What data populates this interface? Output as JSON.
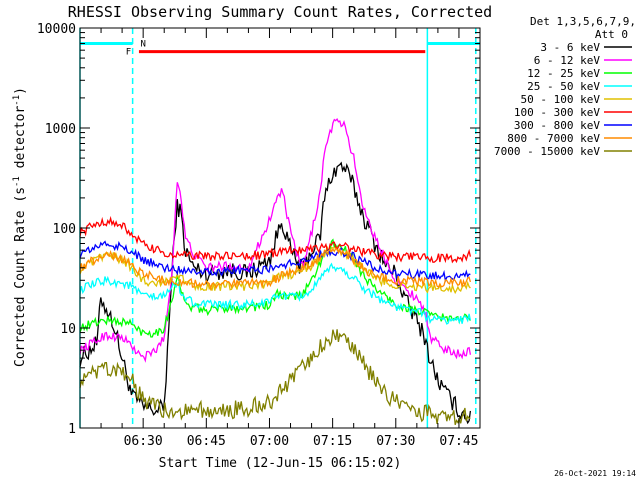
{
  "chart_data": {
    "type": "line",
    "title": "RHESSI Observing Summary Count Rates, Corrected",
    "xlabel": "Start Time (12-Jun-15 06:15:02)",
    "ylabel": "Corrected Count Rate (s⁻¹ detector⁻¹)",
    "ylabel_main": "Corrected Count Rate (s",
    "ylabel_sup1": "-1",
    "ylabel_mid": " detector",
    "ylabel_sup2": "-1",
    "ylabel_end": ")",
    "yscale": "log",
    "ylim": [
      1,
      10000
    ],
    "xlim_minutes": [
      0,
      95
    ],
    "y_ticks": [
      {
        "value": 1,
        "label": "1"
      },
      {
        "value": 10,
        "label": "10"
      },
      {
        "value": 100,
        "label": "100"
      },
      {
        "value": 1000,
        "label": "1000"
      },
      {
        "value": 10000,
        "label": "10000"
      }
    ],
    "x_ticks": [
      {
        "minute": 15,
        "label": "06:30"
      },
      {
        "minute": 30,
        "label": "06:45"
      },
      {
        "minute": 45,
        "label": "07:00"
      },
      {
        "minute": 60,
        "label": "07:15"
      },
      {
        "minute": 75,
        "label": "07:30"
      },
      {
        "minute": 90,
        "label": "07:45"
      }
    ],
    "legend_header": [
      "Det 1,3,5,6,7,9,",
      "Att 0"
    ],
    "legend_position": "right",
    "timestamp": "26-Oct-2021 19:14",
    "flag_bars": [
      {
        "label": "F",
        "color": "#ff0000",
        "start_min": 14,
        "end_min": 82,
        "value": 5800,
        "label_min": 11.5
      },
      {
        "label": "N",
        "color": "#00ffff",
        "start_min": 0,
        "end_min": 12.5,
        "value": 7000,
        "label_min": 15
      },
      {
        "label": "",
        "color": "#00ffff",
        "start_min": 82.5,
        "end_min": 95,
        "value": 7000
      }
    ],
    "boundaries": [
      {
        "minute": 0,
        "style": "solid",
        "color": "#00ffff"
      },
      {
        "minute": 12.5,
        "style": "dashed",
        "color": "#00ffff"
      },
      {
        "minute": 82.5,
        "style": "solid",
        "color": "#00ffff"
      },
      {
        "minute": 94,
        "style": "dashed",
        "color": "#00ffff"
      }
    ],
    "series": [
      {
        "name": "3 - 6 keV",
        "color": "#000000",
        "t": [
          0,
          4,
          5,
          8,
          10,
          12.5,
          13,
          15,
          18,
          20,
          22,
          23,
          24,
          25,
          27,
          30,
          35,
          40,
          45,
          47,
          48,
          50,
          52,
          53,
          55,
          57,
          58,
          60,
          62,
          63,
          65,
          67,
          70,
          73,
          75,
          77,
          80,
          82,
          83,
          85,
          87,
          90,
          93
        ],
        "v": [
          5,
          7,
          20,
          11,
          5,
          2,
          2,
          1.6,
          1.5,
          1.6,
          45,
          170,
          140,
          60,
          40,
          35,
          38,
          35,
          48,
          90,
          120,
          60,
          42,
          38,
          60,
          80,
          200,
          360,
          420,
          390,
          260,
          140,
          70,
          40,
          35,
          20,
          12,
          8,
          5,
          3,
          2.2,
          1.5,
          1.2
        ]
      },
      {
        "name": "6 - 12 keV",
        "color": "#ff00ff",
        "t": [
          0,
          4,
          6,
          10,
          12.5,
          13,
          15,
          18,
          20,
          22,
          23,
          24,
          25,
          27,
          30,
          35,
          40,
          45,
          47,
          48,
          50,
          52,
          53,
          55,
          57,
          58,
          60,
          62,
          63,
          65,
          67,
          70,
          73,
          75,
          77,
          80,
          82,
          83,
          85,
          87,
          90,
          93
        ],
        "v": [
          6,
          7.5,
          8.5,
          8,
          6.5,
          6,
          5,
          6,
          8,
          40,
          330,
          200,
          80,
          55,
          40,
          42,
          40,
          120,
          210,
          240,
          90,
          48,
          40,
          90,
          220,
          550,
          1100,
          1150,
          1000,
          500,
          180,
          80,
          45,
          30,
          25,
          20,
          15,
          8,
          7,
          6,
          5.5,
          6
        ]
      },
      {
        "name": "12 - 25 keV",
        "color": "#00ff00",
        "t": [
          0,
          4,
          6,
          10,
          12.5,
          13,
          15,
          18,
          20,
          22,
          23,
          25,
          27,
          30,
          35,
          40,
          45,
          47,
          50,
          53,
          55,
          57,
          60,
          62,
          65,
          67,
          70,
          73,
          75,
          80,
          82,
          85,
          90,
          93
        ],
        "v": [
          10,
          11.5,
          12,
          11.5,
          11,
          10,
          9,
          9,
          10,
          20,
          35,
          17,
          16,
          15,
          16,
          16,
          17,
          22,
          20,
          22,
          30,
          45,
          70,
          65,
          50,
          35,
          25,
          20,
          17,
          15,
          14,
          13,
          12,
          13
        ]
      },
      {
        "name": "25 - 50 keV",
        "color": "#00ffff",
        "t": [
          0,
          4,
          6,
          10,
          12.5,
          13,
          15,
          18,
          20,
          22,
          23,
          25,
          27,
          30,
          35,
          40,
          45,
          47,
          50,
          53,
          55,
          57,
          60,
          62,
          65,
          67,
          70,
          73,
          75,
          80,
          82,
          85,
          90,
          93
        ],
        "v": [
          24,
          28,
          30,
          28,
          26,
          24,
          21,
          20,
          21,
          26,
          28,
          20,
          18,
          17,
          17,
          17,
          18,
          22,
          20,
          21,
          24,
          30,
          42,
          38,
          32,
          26,
          21,
          18,
          16,
          15,
          13,
          12,
          12,
          13
        ]
      },
      {
        "name": "50 - 100 keV",
        "color": "#e0c000",
        "t": [
          0,
          4,
          6,
          10,
          12.5,
          13,
          15,
          18,
          20,
          22,
          23,
          25,
          27,
          30,
          35,
          40,
          45,
          47,
          50,
          53,
          55,
          57,
          60,
          62,
          65,
          67,
          70,
          73,
          75,
          80,
          82,
          85,
          90,
          93
        ],
        "v": [
          38,
          48,
          55,
          48,
          40,
          36,
          30,
          28,
          29,
          32,
          34,
          29,
          27,
          26,
          26,
          26,
          28,
          33,
          34,
          38,
          42,
          52,
          62,
          58,
          48,
          40,
          32,
          28,
          27,
          26,
          25,
          25,
          25,
          27
        ]
      },
      {
        "name": "100 - 300 keV",
        "color": "#ff0000",
        "t": [
          0,
          4,
          6,
          10,
          12.5,
          13,
          15,
          18,
          20,
          22,
          25,
          27,
          30,
          35,
          40,
          45,
          47,
          50,
          53,
          55,
          57,
          60,
          62,
          65,
          67,
          70,
          73,
          75,
          80,
          82,
          85,
          90,
          93
        ],
        "v": [
          90,
          110,
          118,
          105,
          88,
          80,
          68,
          60,
          56,
          54,
          53,
          53,
          52,
          52,
          53,
          54,
          58,
          60,
          62,
          63,
          64,
          66,
          66,
          62,
          58,
          55,
          53,
          52,
          51,
          50,
          50,
          51,
          55
        ]
      },
      {
        "name": "300 - 800 keV",
        "color": "#0000ff",
        "t": [
          0,
          4,
          6,
          10,
          12.5,
          13,
          15,
          18,
          20,
          22,
          25,
          27,
          30,
          35,
          40,
          45,
          47,
          50,
          53,
          55,
          57,
          60,
          62,
          65,
          67,
          70,
          73,
          75,
          80,
          82,
          85,
          90,
          93
        ],
        "v": [
          55,
          65,
          70,
          64,
          58,
          54,
          48,
          43,
          40,
          39,
          38,
          38,
          37,
          37,
          38,
          39,
          42,
          44,
          47,
          50,
          54,
          58,
          58,
          52,
          46,
          40,
          36,
          35,
          34,
          33,
          33,
          33,
          36
        ]
      },
      {
        "name": "800 - 7000 keV",
        "color": "#ff8c00",
        "t": [
          0,
          4,
          6,
          10,
          12.5,
          13,
          15,
          18,
          20,
          22,
          25,
          27,
          30,
          35,
          40,
          45,
          47,
          50,
          53,
          55,
          57,
          60,
          62,
          65,
          67,
          70,
          73,
          75,
          80,
          82,
          85,
          90,
          93
        ],
        "v": [
          40,
          50,
          56,
          50,
          43,
          40,
          35,
          32,
          30,
          29,
          28,
          28,
          27,
          27,
          28,
          29,
          32,
          36,
          40,
          45,
          52,
          60,
          58,
          48,
          40,
          34,
          31,
          30,
          29,
          29,
          28,
          28,
          30
        ]
      },
      {
        "name": "7000 - 15000 keV",
        "color": "#808000",
        "t": [
          0,
          4,
          6,
          10,
          12.5,
          13,
          15,
          18,
          20,
          22,
          25,
          27,
          30,
          35,
          40,
          45,
          47,
          50,
          53,
          55,
          57,
          60,
          62,
          65,
          67,
          70,
          73,
          75,
          80,
          82,
          85,
          90,
          93
        ],
        "v": [
          3,
          3.5,
          3.8,
          3.5,
          3,
          2.6,
          2,
          1.6,
          1.5,
          1.5,
          1.5,
          1.5,
          1.5,
          1.5,
          1.6,
          1.8,
          2.2,
          3,
          4,
          5,
          6.5,
          8,
          7.8,
          6,
          4.5,
          3,
          2.2,
          1.8,
          1.5,
          1.4,
          1.3,
          1.3,
          1.3
        ]
      }
    ]
  }
}
